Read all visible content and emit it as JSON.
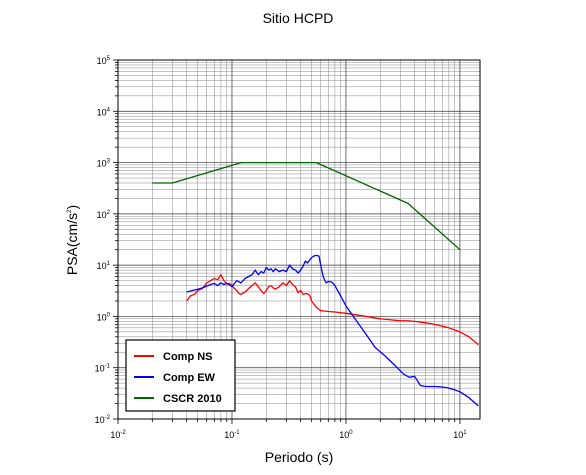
{
  "chart_data": {
    "type": "line",
    "title": "Sitio HCPD",
    "xlabel": "Periodo (s)",
    "ylabel": {
      "base": "PSA(cm/s",
      "sup": "2",
      "tail": ")"
    },
    "x_scale": "log",
    "y_scale": "log",
    "xlim": [
      0.01,
      15
    ],
    "ylim": [
      0.01,
      100000
    ],
    "grid": true,
    "legend_position": "bottom-left",
    "x_ticks": [
      {
        "base": "10",
        "exp": "-2",
        "value": 0.01
      },
      {
        "base": "10",
        "exp": "-1",
        "value": 0.1
      },
      {
        "base": "10",
        "exp": "0",
        "value": 1
      },
      {
        "base": "10",
        "exp": "1",
        "value": 10
      }
    ],
    "y_ticks": [
      {
        "base": "10",
        "exp": "-2",
        "value": 0.01
      },
      {
        "base": "10",
        "exp": "-1",
        "value": 0.1
      },
      {
        "base": "10",
        "exp": "0",
        "value": 1
      },
      {
        "base": "10",
        "exp": "1",
        "value": 10
      },
      {
        "base": "10",
        "exp": "2",
        "value": 100
      },
      {
        "base": "10",
        "exp": "3",
        "value": 1000
      },
      {
        "base": "10",
        "exp": "4",
        "value": 10000
      },
      {
        "base": "10",
        "exp": "5",
        "value": 100000
      }
    ],
    "series": [
      {
        "name": "Comp NS",
        "color": "#ff0000",
        "x": [
          0.04,
          0.043,
          0.047,
          0.05,
          0.055,
          0.06,
          0.065,
          0.07,
          0.075,
          0.08,
          0.085,
          0.09,
          0.095,
          0.1,
          0.105,
          0.11,
          0.115,
          0.12,
          0.13,
          0.14,
          0.15,
          0.16,
          0.17,
          0.18,
          0.19,
          0.2,
          0.21,
          0.22,
          0.23,
          0.24,
          0.26,
          0.28,
          0.3,
          0.32,
          0.34,
          0.36,
          0.38,
          0.4,
          0.42,
          0.45,
          0.48,
          0.5,
          0.55,
          0.6,
          0.7,
          0.8,
          1.0,
          1.3,
          1.6,
          2.0,
          3.0,
          3.5,
          4.0,
          5.0,
          6.0,
          8.0,
          10.0,
          12.0,
          14.5
        ],
        "y": [
          2.0,
          2.5,
          2.7,
          3.2,
          3.5,
          4.5,
          5.0,
          5.5,
          5.2,
          6.5,
          5.0,
          4.3,
          4.4,
          4.0,
          3.5,
          3.2,
          2.8,
          2.7,
          3.0,
          3.5,
          4.0,
          4.5,
          3.8,
          3.2,
          2.8,
          3.2,
          3.8,
          4.0,
          3.6,
          3.4,
          3.8,
          4.5,
          4.0,
          5.0,
          4.2,
          3.8,
          2.9,
          3.2,
          2.7,
          2.8,
          2.6,
          2.0,
          1.5,
          1.3,
          1.25,
          1.22,
          1.15,
          1.05,
          0.98,
          0.9,
          0.82,
          0.82,
          0.8,
          0.75,
          0.7,
          0.6,
          0.5,
          0.4,
          0.28
        ]
      },
      {
        "name": "Comp EW",
        "color": "#0000ff",
        "x": [
          0.04,
          0.045,
          0.05,
          0.055,
          0.06,
          0.065,
          0.07,
          0.075,
          0.08,
          0.085,
          0.09,
          0.095,
          0.1,
          0.11,
          0.12,
          0.13,
          0.14,
          0.15,
          0.16,
          0.17,
          0.18,
          0.19,
          0.2,
          0.21,
          0.22,
          0.23,
          0.24,
          0.26,
          0.28,
          0.3,
          0.32,
          0.34,
          0.36,
          0.38,
          0.4,
          0.42,
          0.44,
          0.46,
          0.48,
          0.5,
          0.52,
          0.55,
          0.58,
          0.6,
          0.63,
          0.67,
          0.7,
          0.75,
          0.8,
          0.9,
          1.0,
          1.2,
          1.5,
          1.8,
          2.2,
          2.7,
          3.2,
          3.6,
          4.0,
          4.5,
          5.0,
          6.0,
          7.0,
          8.0,
          9.0,
          10.0,
          12.0,
          14.5
        ],
        "y": [
          3.0,
          3.2,
          3.4,
          3.6,
          3.9,
          4.2,
          4.4,
          4.0,
          4.5,
          4.2,
          4.4,
          4.1,
          3.8,
          5.0,
          4.5,
          5.5,
          6.0,
          6.5,
          8.0,
          6.5,
          7.5,
          7.0,
          9.0,
          8.0,
          8.5,
          7.5,
          8.5,
          7.5,
          8.0,
          7.5,
          10.0,
          8.5,
          8.0,
          7.0,
          8.0,
          9.5,
          12.0,
          11.0,
          12.5,
          14.0,
          15.0,
          15.5,
          15.0,
          10.0,
          6.0,
          4.5,
          4.8,
          4.7,
          4.0,
          2.5,
          1.6,
          0.9,
          0.45,
          0.25,
          0.17,
          0.11,
          0.075,
          0.065,
          0.068,
          0.045,
          0.043,
          0.043,
          0.042,
          0.04,
          0.037,
          0.034,
          0.026,
          0.018
        ]
      },
      {
        "name": "CSCR 2010",
        "color": "#006400",
        "x": [
          0.02,
          0.03,
          0.12,
          0.55,
          3.5,
          10.0
        ],
        "y": [
          400,
          400,
          1000,
          1000,
          160,
          20
        ]
      }
    ]
  }
}
